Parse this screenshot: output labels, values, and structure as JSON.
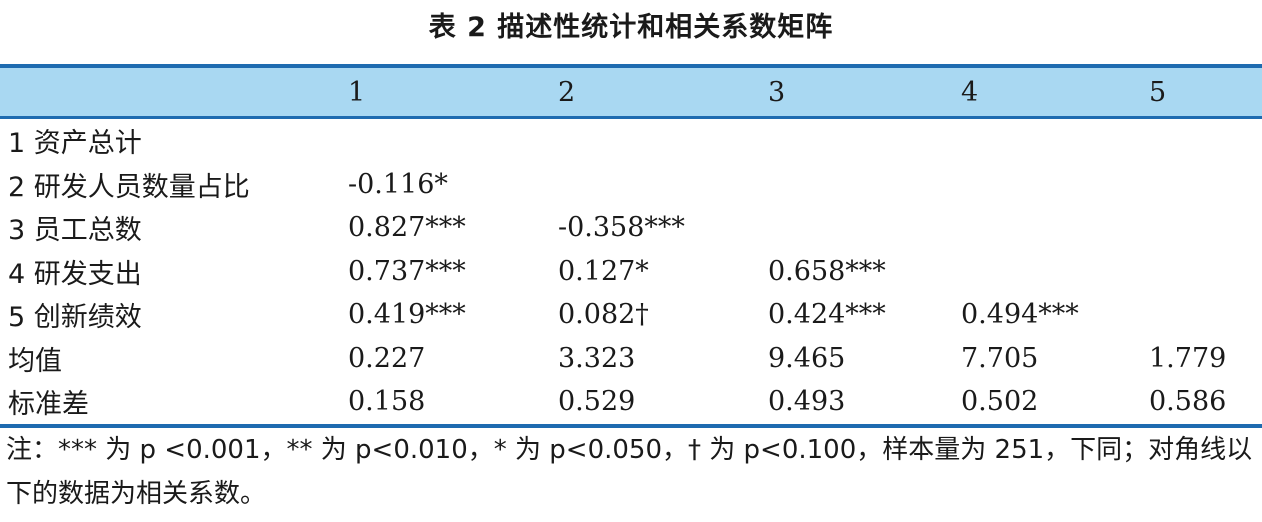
{
  "title": "表 2  描述性统计和相关系数矩阵",
  "table": {
    "header": [
      "",
      "1",
      "2",
      "3",
      "4",
      "5"
    ],
    "rows": [
      [
        "1 资产总计",
        "",
        "",
        "",
        "",
        ""
      ],
      [
        "2 研发人员数量占比",
        "-0.116*",
        "",
        "",
        "",
        ""
      ],
      [
        "3 员工总数",
        "0.827***",
        "-0.358***",
        "",
        "",
        ""
      ],
      [
        "4 研发支出",
        "0.737***",
        "0.127*",
        "0.658***",
        "",
        ""
      ],
      [
        "5 创新绩效",
        "0.419***",
        "0.082†",
        "0.424***",
        "0.494***",
        ""
      ],
      [
        "均值",
        "0.227",
        "3.323",
        "9.465",
        "7.705",
        "1.779"
      ],
      [
        "标准差",
        "0.158",
        "0.529",
        "0.493",
        "0.502",
        "0.586"
      ]
    ]
  },
  "note": "注：*** 为 p <0.001，** 为 p<0.010，* 为 p<0.050，† 为 p<0.100，样本量为 251，下同；对角线以下的数据为相关系数。",
  "colors": {
    "header_bg": "#a9d8f2",
    "rule": "#1e6bb0"
  }
}
